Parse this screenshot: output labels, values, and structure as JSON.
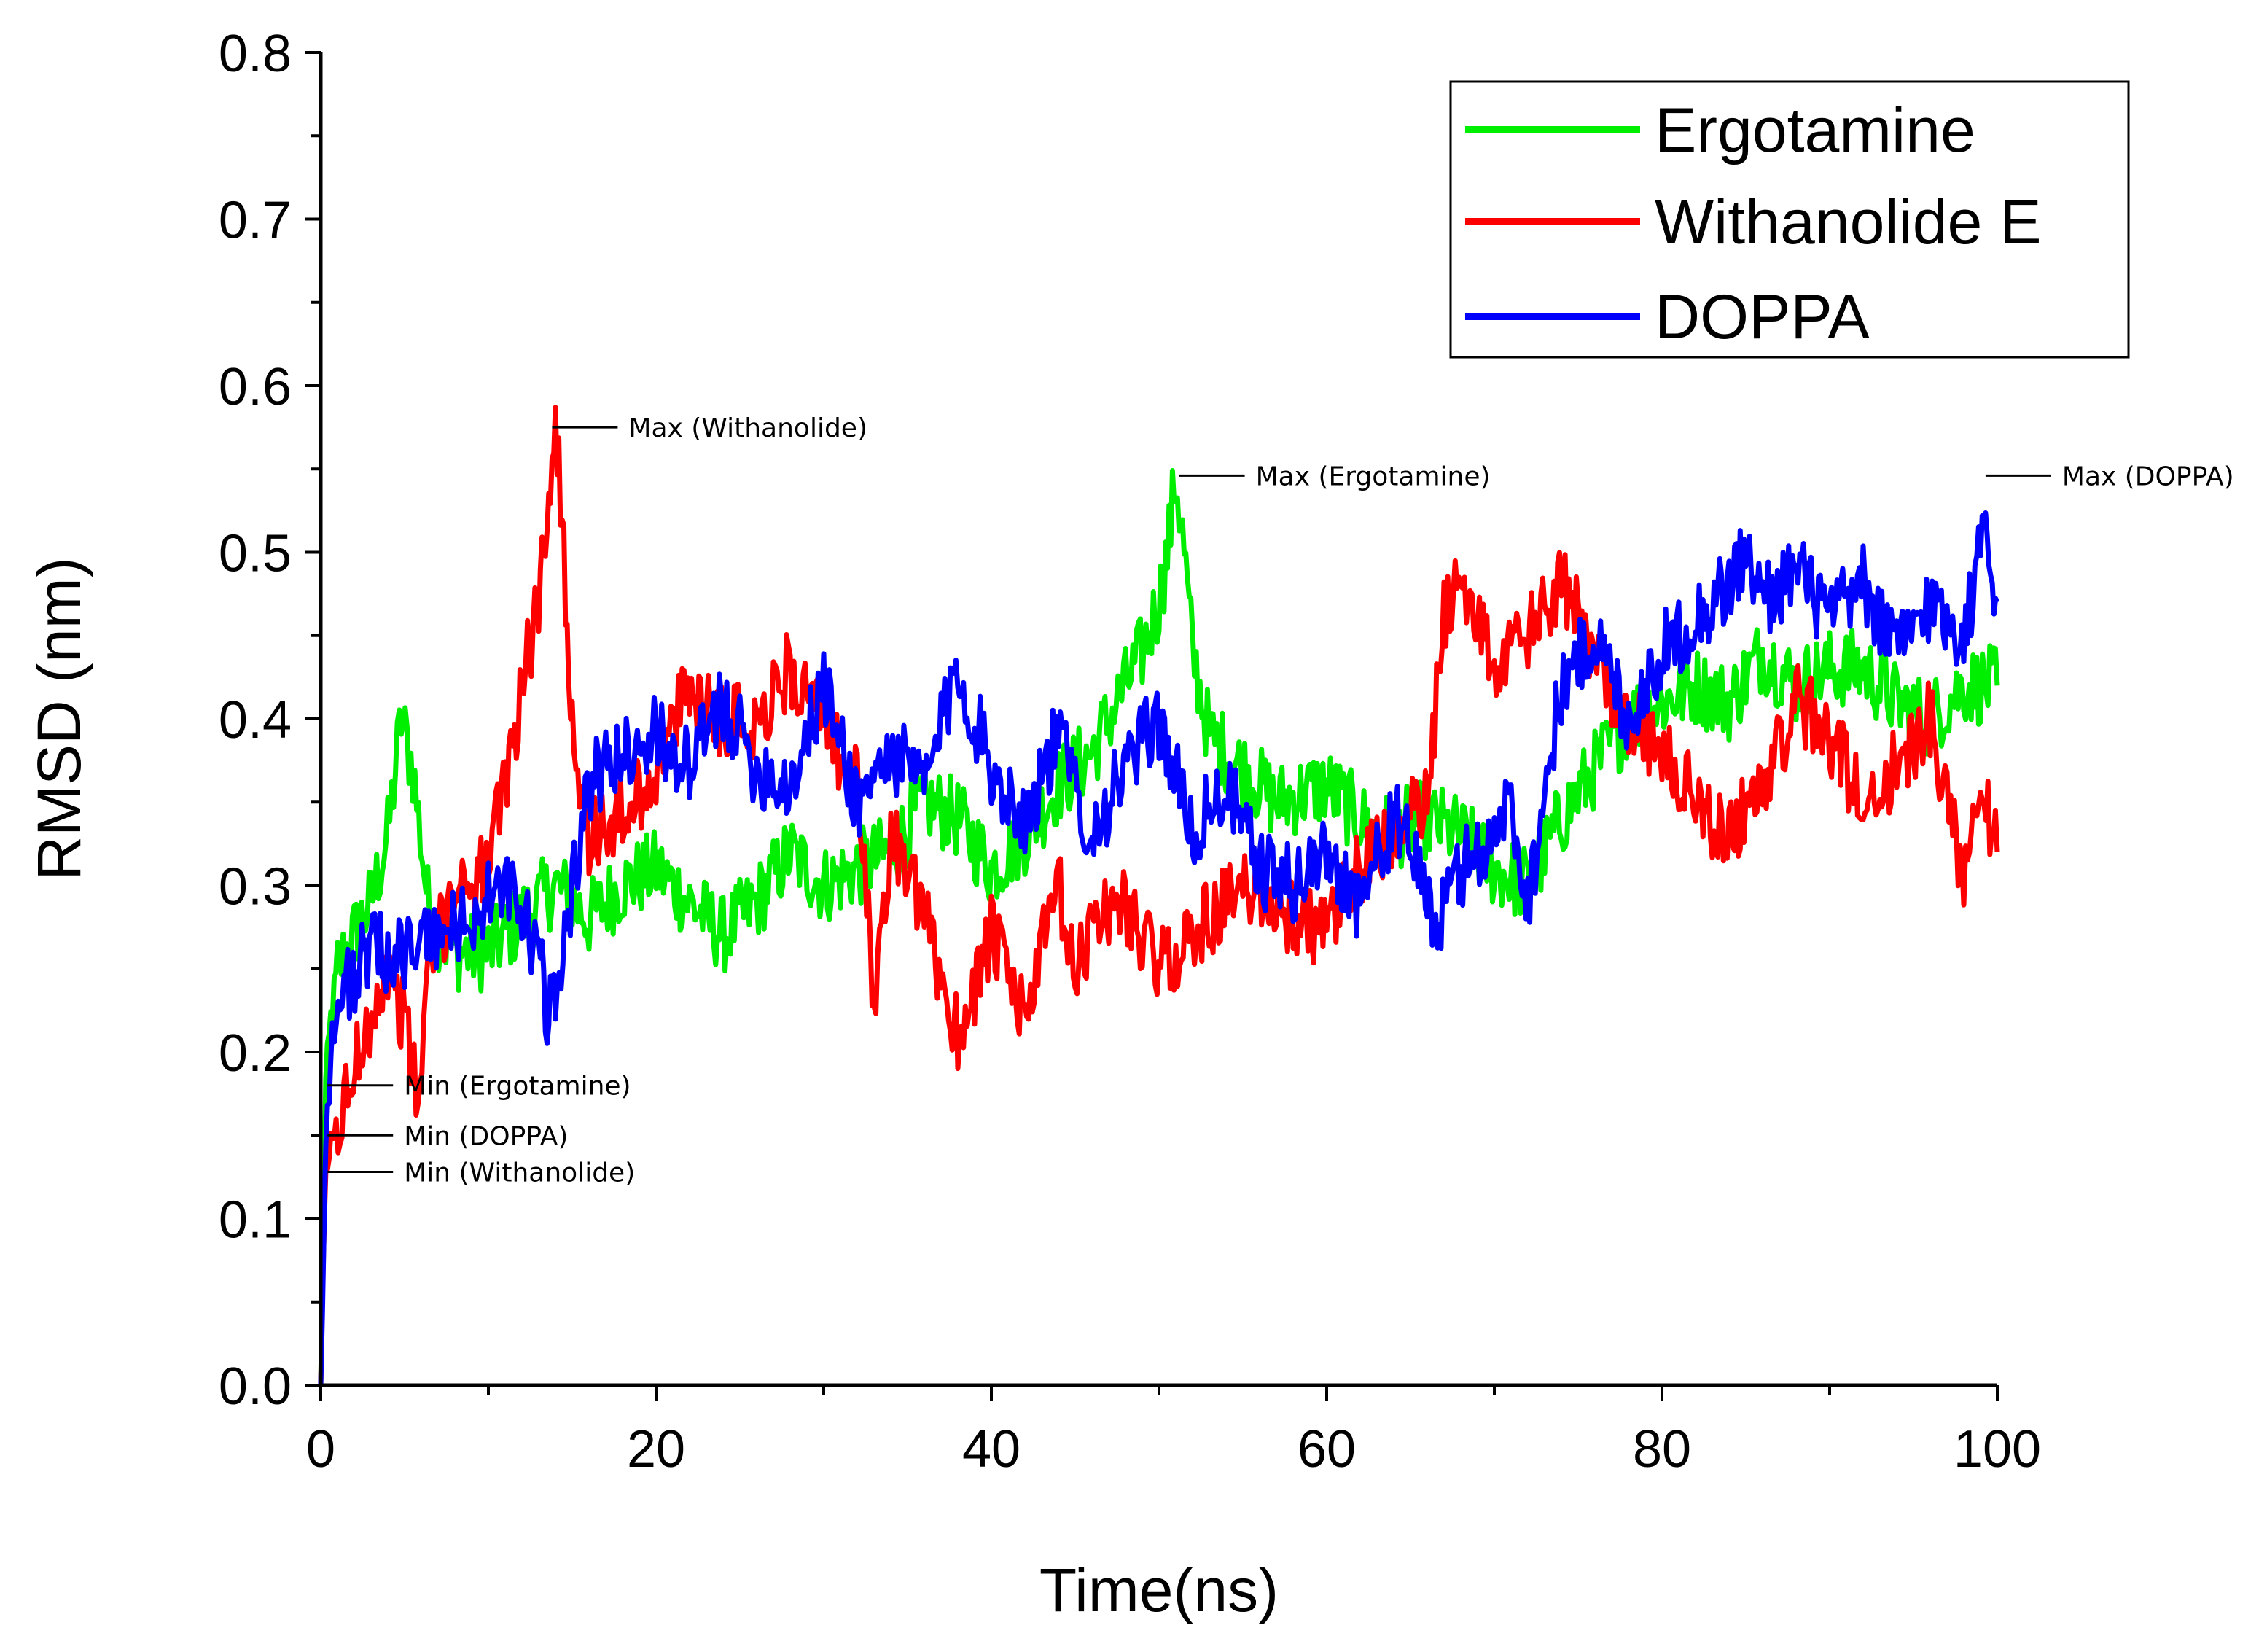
{
  "chart_data": {
    "type": "line",
    "title": "",
    "xlabel": "Time(ns)",
    "ylabel": "RMSD (nm)",
    "xlim": [
      0,
      100
    ],
    "ylim": [
      0.0,
      0.8
    ],
    "xticks": [
      "0",
      "20",
      "40",
      "60",
      "80",
      "100"
    ],
    "yticks": [
      "0.0",
      "0.1",
      "0.2",
      "0.3",
      "0.4",
      "0.5",
      "0.6",
      "0.7",
      "0.8"
    ],
    "legend_position": "top-right",
    "series": [
      {
        "name": "Ergotamine",
        "color": "#00ee00",
        "x": [
          0,
          0.3,
          0.6,
          1,
          2,
          3,
          4,
          4.8,
          5.5,
          6.5,
          8,
          10,
          12,
          14,
          16,
          18,
          20,
          22,
          24,
          26,
          28,
          30,
          32,
          34,
          36,
          38,
          40,
          42,
          44,
          46,
          47,
          48,
          49,
          50,
          50.5,
          51,
          51.5,
          52,
          53,
          55,
          57,
          60,
          63,
          66,
          68,
          70,
          72,
          74,
          76,
          78,
          80,
          82,
          84,
          86,
          88,
          90,
          92,
          94,
          96,
          98,
          100
        ],
        "y": [
          0.0,
          0.18,
          0.22,
          0.25,
          0.27,
          0.29,
          0.33,
          0.4,
          0.37,
          0.28,
          0.26,
          0.26,
          0.28,
          0.3,
          0.28,
          0.3,
          0.31,
          0.29,
          0.27,
          0.29,
          0.32,
          0.3,
          0.31,
          0.32,
          0.35,
          0.34,
          0.31,
          0.33,
          0.36,
          0.38,
          0.4,
          0.42,
          0.44,
          0.47,
          0.5,
          0.545,
          0.5,
          0.44,
          0.39,
          0.37,
          0.35,
          0.36,
          0.33,
          0.34,
          0.33,
          0.31,
          0.3,
          0.34,
          0.37,
          0.4,
          0.41,
          0.42,
          0.41,
          0.44,
          0.42,
          0.43,
          0.43,
          0.41,
          0.4,
          0.42,
          0.42
        ]
      },
      {
        "name": "Withanolide E",
        "color": "#ff0000",
        "x": [
          0,
          0.3,
          0.8,
          1.5,
          2.5,
          4,
          5,
          5.8,
          6.5,
          8,
          10,
          11,
          12,
          13,
          13.5,
          14,
          14.5,
          15,
          16,
          18,
          20,
          22,
          24,
          26,
          28,
          30,
          32,
          33,
          34,
          36,
          38,
          40,
          42,
          44,
          45,
          46,
          48,
          50,
          52,
          54,
          56,
          58,
          60,
          62,
          64,
          66,
          67,
          68,
          70,
          72,
          74,
          76,
          78,
          80,
          82,
          84,
          86,
          88,
          90,
          92,
          94,
          96,
          97,
          98,
          99,
          100
        ],
        "y": [
          0.0,
          0.13,
          0.15,
          0.17,
          0.21,
          0.25,
          0.22,
          0.17,
          0.25,
          0.3,
          0.31,
          0.36,
          0.42,
          0.47,
          0.53,
          0.575,
          0.5,
          0.4,
          0.33,
          0.34,
          0.37,
          0.42,
          0.4,
          0.4,
          0.43,
          0.4,
          0.36,
          0.23,
          0.33,
          0.28,
          0.21,
          0.27,
          0.22,
          0.3,
          0.24,
          0.28,
          0.29,
          0.25,
          0.27,
          0.29,
          0.3,
          0.28,
          0.27,
          0.31,
          0.33,
          0.35,
          0.46,
          0.49,
          0.43,
          0.45,
          0.48,
          0.44,
          0.4,
          0.38,
          0.35,
          0.33,
          0.36,
          0.41,
          0.39,
          0.35,
          0.37,
          0.4,
          0.35,
          0.31,
          0.37,
          0.32
        ]
      },
      {
        "name": "DOPPA",
        "color": "#0000ff",
        "x": [
          0,
          0.3,
          0.7,
          1.5,
          3,
          5,
          7,
          9,
          11,
          12,
          13,
          13.5,
          14,
          15,
          16,
          18,
          20,
          22,
          24,
          26,
          28,
          30,
          32,
          34,
          36,
          38,
          40,
          42,
          44,
          46,
          48,
          50,
          52,
          54,
          56,
          58,
          60,
          62,
          64,
          66,
          66.5,
          68,
          70,
          71,
          72,
          74,
          76,
          78,
          80,
          82,
          84,
          85,
          86,
          88,
          90,
          92,
          94,
          96,
          98,
          99,
          99.3,
          99.7,
          100
        ],
        "y": [
          0.0,
          0.15,
          0.21,
          0.24,
          0.26,
          0.26,
          0.27,
          0.28,
          0.3,
          0.28,
          0.26,
          0.22,
          0.24,
          0.3,
          0.36,
          0.38,
          0.39,
          0.37,
          0.41,
          0.37,
          0.36,
          0.42,
          0.35,
          0.38,
          0.36,
          0.43,
          0.37,
          0.34,
          0.39,
          0.33,
          0.37,
          0.4,
          0.33,
          0.36,
          0.31,
          0.3,
          0.32,
          0.29,
          0.34,
          0.3,
          0.27,
          0.31,
          0.33,
          0.35,
          0.29,
          0.42,
          0.45,
          0.4,
          0.44,
          0.46,
          0.48,
          0.5,
          0.47,
          0.49,
          0.46,
          0.48,
          0.44,
          0.47,
          0.45,
          0.5,
          0.545,
          0.48,
          0.47
        ]
      }
    ],
    "annotations": [
      {
        "text": "Max (Withanolide)",
        "x": 13.8,
        "y": 0.575
      },
      {
        "text": "Max (Ergotamine)",
        "x": 51.2,
        "y": 0.546
      },
      {
        "text": "Max (DOPPA)",
        "x": 99.3,
        "y": 0.546
      },
      {
        "text": "Min (Ergotamine)",
        "x": 0.4,
        "y": 0.18
      },
      {
        "text": "Min (DOPPA)",
        "x": 0.4,
        "y": 0.15
      },
      {
        "text": "Min (Withanolide)",
        "x": 0.4,
        "y": 0.128
      }
    ]
  }
}
